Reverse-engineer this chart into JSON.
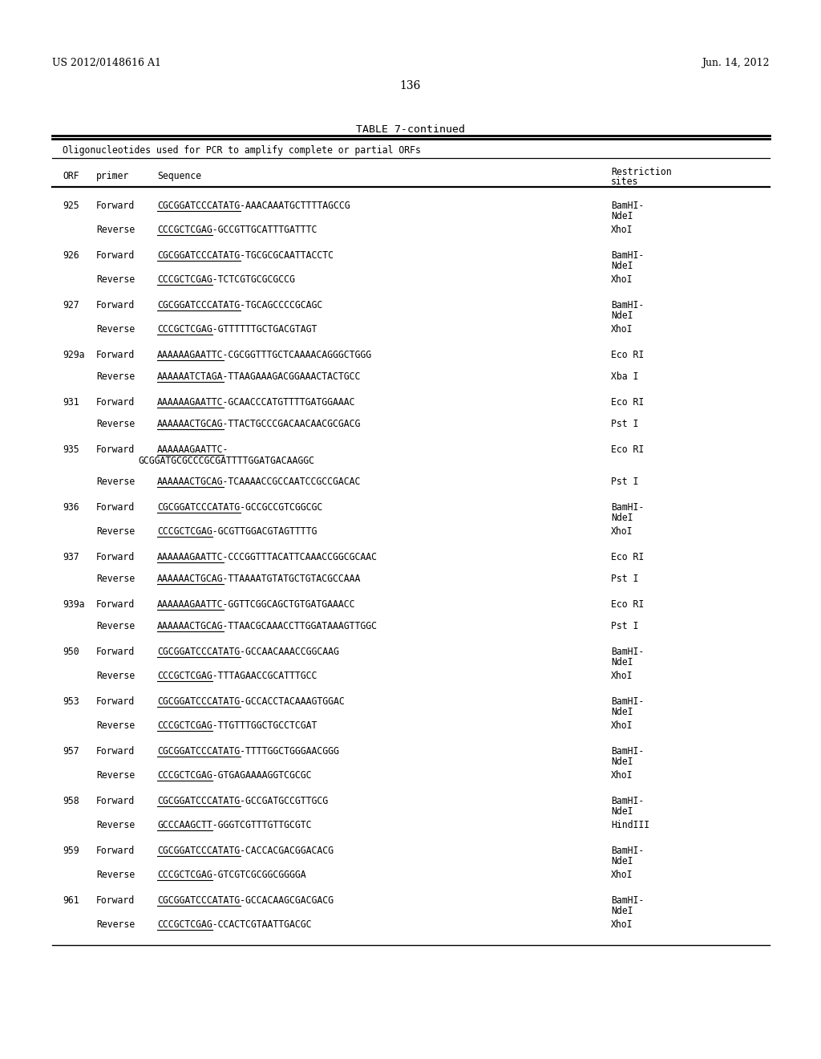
{
  "header_left": "US 2012/0148616 A1",
  "header_right": "Jun. 14, 2012",
  "page_number": "136",
  "table_title": "TABLE 7-continued",
  "table_subtitle": "Oligonucleotides used for PCR to amplify complete or partial ORFs",
  "col_orf_header": "ORF",
  "col_primer_header": "primer",
  "col_seq_header": "Sequence",
  "col_res_header_1": "Restriction",
  "col_res_header_2": "sites",
  "bg_color": "#ffffff",
  "rows": [
    [
      "925",
      "Forward",
      "CGCGGATCCCATATG",
      "-AAACAAATGCTTTTAGCCG",
      "BamHI-",
      "NdeI"
    ],
    [
      "",
      "Reverse",
      "CCCGCTCGAG",
      "-GCCGTTGCATTTGATTTC",
      "XhoI",
      ""
    ],
    [
      "926",
      "Forward",
      "CGCGGATCCCATATG",
      "-TGCGCGCAATTACCTC",
      "BamHI-",
      "NdeI"
    ],
    [
      "",
      "Reverse",
      "CCCGCTCGAG",
      "-TCTCGTGCGCGCCG",
      "XhoI",
      ""
    ],
    [
      "927",
      "Forward",
      "CGCGGATCCCATATG",
      "-TGCAGCCCCGCAGC",
      "BamHI-",
      "NdeI"
    ],
    [
      "",
      "Reverse",
      "CCCGCTCGAG",
      "-GTTTTTTGCTGACGTAGT",
      "XhoI",
      ""
    ],
    [
      "929a",
      "Forward",
      "AAAAAAGAATTC",
      "-CGCGGTTTGCTCAAAACAGGGCTGGG",
      "Eco RI",
      ""
    ],
    [
      "",
      "Reverse",
      "AAAAAATCTAGA",
      "-TTAAGAAAGACGGAAACTACTGCC",
      "Xba I",
      ""
    ],
    [
      "931",
      "Forward",
      "AAAAAAGAATTC",
      "-GCAACCCATGTTTTGATGGAAAC",
      "Eco RI",
      ""
    ],
    [
      "",
      "Reverse",
      "AAAAAACTGCAG",
      "-TTACTGCCCGACAACAACGCGACG",
      "Pst I",
      ""
    ],
    [
      "935",
      "Forward",
      "AAAAAAGAATTC",
      "-|GCGGATGCGCCCGCGATTTTGGATGACAAGGC",
      "Eco RI",
      ""
    ],
    [
      "",
      "Reverse",
      "AAAAAACTGCAG",
      "-TCAAAACCGCCAATCCGCCGACAC",
      "Pst I",
      ""
    ],
    [
      "936",
      "Forward",
      "CGCGGATCCCATATG",
      "-GCCGCCGTCGGCGC",
      "BamHI-",
      "NdeI"
    ],
    [
      "",
      "Reverse",
      "CCCGCTCGAG",
      "-GCGTTGGACGTAGTTTTG",
      "XhoI",
      ""
    ],
    [
      "937",
      "Forward",
      "AAAAAAGAATTC",
      "-CCCGGTTTACATTCAAACCGGCGCAAC",
      "Eco RI",
      ""
    ],
    [
      "",
      "Reverse",
      "AAAAAACTGCAG",
      "-TTAAAATGTATGCTGTACGCCAAA",
      "Pst I",
      ""
    ],
    [
      "939a",
      "Forward",
      "AAAAAAGAATTC",
      "-GGTTCGGCAGCTGTGATGAAACC",
      "Eco RI",
      ""
    ],
    [
      "",
      "Reverse",
      "AAAAAACTGCAG",
      "-TTAACGCAAACCTTGGATAAAGTTGGC",
      "Pst I",
      ""
    ],
    [
      "950",
      "Forward",
      "CGCGGATCCCATATG",
      "-GCCAACAAACCGGCAAG",
      "BamHI-",
      "NdeI"
    ],
    [
      "",
      "Reverse",
      "CCCGCTCGAG",
      "-TTTAGAACCGCATTTGCC",
      "XhoI",
      ""
    ],
    [
      "953",
      "Forward",
      "CGCGGATCCCATATG",
      "-GCCACCTACAAAGTGGAC",
      "BamHI-",
      "NdeI"
    ],
    [
      "",
      "Reverse",
      "CCCGCTCGAG",
      "-TTGTTTGGCTGCCTCGAT",
      "XhoI",
      ""
    ],
    [
      "957",
      "Forward",
      "CGCGGATCCCATATG",
      "-TTTTGGCTGGGAACGGG",
      "BamHI-",
      "NdeI"
    ],
    [
      "",
      "Reverse",
      "CCCGCTCGAG",
      "-GTGAGAAAAGGTCGCGC",
      "XhoI",
      ""
    ],
    [
      "958",
      "Forward",
      "CGCGGATCCCATATG",
      "-GCCGATGCCGTTGCG",
      "BamHI-",
      "NdeI"
    ],
    [
      "",
      "Reverse",
      "GCCCAAGCTT",
      "-GGGTCGTTTGTTGCGTC",
      "HindIII",
      ""
    ],
    [
      "959",
      "Forward",
      "CGCGGATCCCATATG",
      "-CACCACGACGGACACG",
      "BamHI-",
      "NdeI"
    ],
    [
      "",
      "Reverse",
      "CCCGCTCGAG",
      "-GTCGTCGCGGCGGGGA",
      "XhoI",
      ""
    ],
    [
      "961",
      "Forward",
      "CGCGGATCCCATATG",
      "-GCCACAAGCGACGACG",
      "BamHI-",
      "NdeI"
    ],
    [
      "",
      "Reverse",
      "CCCGCTCGAG",
      "-CCACTCGTAATTGACGC",
      "XhoI",
      ""
    ]
  ]
}
